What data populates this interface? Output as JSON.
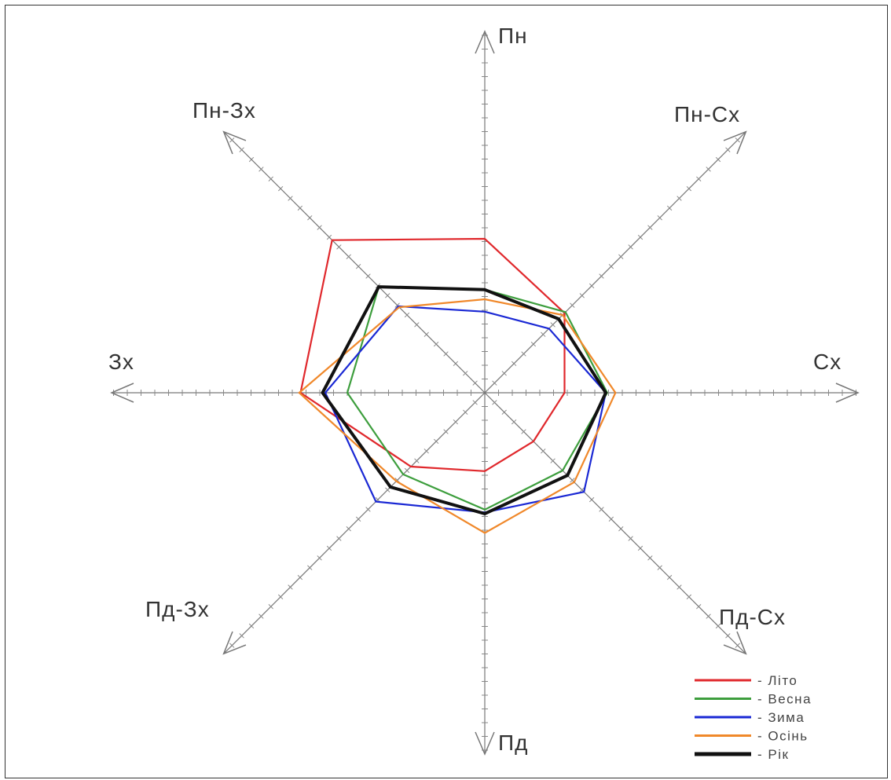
{
  "chart_data": {
    "type": "radar",
    "directions": [
      "Пн",
      "Пн-Сх",
      "Сх",
      "Пд-Сх",
      "Пд",
      "Пд-Зх",
      "Зх",
      "Пн-Зх"
    ],
    "series": [
      {
        "name": "Літо",
        "color": "#e0282c",
        "values": [
          11.2,
          8.2,
          5.8,
          5.0,
          5.7,
          7.6,
          13.4,
          15.7
        ]
      },
      {
        "name": "Весна",
        "color": "#3d9e3d",
        "values": [
          7.5,
          8.3,
          8.9,
          8.0,
          8.5,
          8.4,
          10.0,
          10.9
        ]
      },
      {
        "name": "Зима",
        "color": "#1a28d4",
        "values": [
          5.9,
          6.6,
          8.8,
          10.2,
          8.7,
          11.2,
          11.6,
          8.9
        ]
      },
      {
        "name": "Осінь",
        "color": "#f0882a",
        "values": [
          6.8,
          8.0,
          9.5,
          9.2,
          10.2,
          9.1,
          13.5,
          8.8
        ]
      },
      {
        "name": "Рік",
        "color": "#111111",
        "values": [
          7.5,
          7.6,
          8.8,
          8.5,
          8.8,
          9.7,
          11.8,
          10.9
        ]
      }
    ],
    "legend_placement": "bottom-right"
  },
  "legend": {
    "items": [
      {
        "label": "- Літо"
      },
      {
        "label": "- Весна"
      },
      {
        "label": "- Зима"
      },
      {
        "label": "- Осінь"
      },
      {
        "label": "- Рік"
      }
    ]
  }
}
